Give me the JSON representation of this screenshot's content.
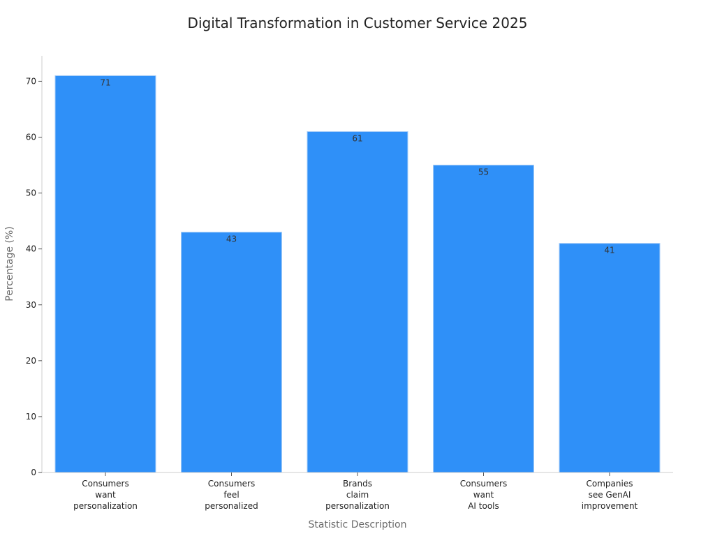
{
  "chart_data": {
    "type": "bar",
    "title": "Digital Transformation in Customer Service 2025",
    "xlabel": "Statistic Description",
    "ylabel": "Percentage (%)",
    "categories": [
      [
        "Consumers",
        "want",
        "personalization"
      ],
      [
        "Consumers",
        "feel",
        "personalized"
      ],
      [
        "Brands",
        "claim",
        "personalization"
      ],
      [
        "Consumers",
        "want",
        "AI tools"
      ],
      [
        "Companies",
        "see GenAI",
        "improvement"
      ]
    ],
    "values": [
      71,
      43,
      61,
      55,
      41
    ],
    "ylim": [
      0,
      74.55
    ],
    "yticks": [
      0,
      10,
      20,
      30,
      40,
      50,
      60,
      70
    ],
    "grid": false,
    "bar_color": "#2f90f8",
    "bar_edge_color": "#a9cef7"
  }
}
